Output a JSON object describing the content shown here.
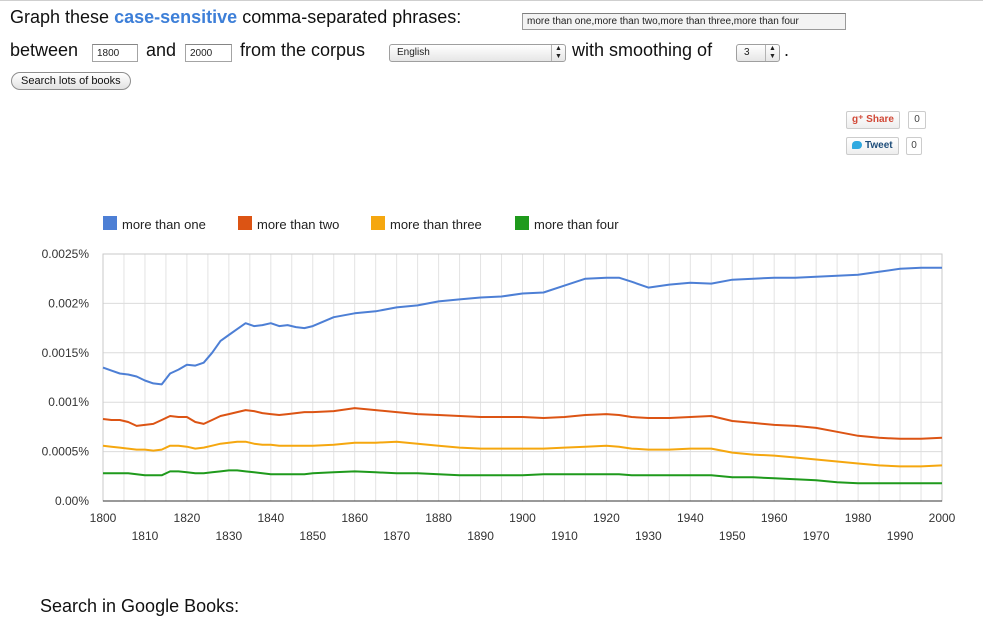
{
  "form": {
    "graph_prefix": "Graph these",
    "case_sensitive": "case-sensitive",
    "graph_suffix": "comma-separated phrases:",
    "phrases_value": "more than one,more than two,more than three,more than four",
    "between_label": "between",
    "start_year": "1800",
    "and_label": "and",
    "end_year": "2000",
    "corpus_label": "from the corpus",
    "corpus_value": "English",
    "smoothing_label": "with smoothing of",
    "smoothing_value": "3",
    "period": ".",
    "search_button": "Search lots of books"
  },
  "social": {
    "share_label": "Share",
    "share_count": "0",
    "tweet_label": "Tweet",
    "tweet_count": "0"
  },
  "footer": {
    "search_in_google_books": "Search in Google Books:"
  },
  "chart_data": {
    "type": "line",
    "xlim": [
      1800,
      2000
    ],
    "ylim": [
      0,
      0.0025
    ],
    "x_ticks": [
      1800,
      1810,
      1820,
      1830,
      1840,
      1850,
      1860,
      1870,
      1880,
      1890,
      1900,
      1910,
      1920,
      1930,
      1940,
      1950,
      1960,
      1970,
      1980,
      1990,
      2000
    ],
    "y_ticks": [
      0,
      0.0005,
      0.001,
      0.0015,
      0.002,
      0.0025
    ],
    "y_tick_labels": [
      "0.00%",
      "0.0005%",
      "0.001%",
      "0.0015%",
      "0.002%",
      "0.0025%"
    ],
    "grid": true,
    "legend_position": "top",
    "x": [
      1800,
      1802,
      1804,
      1806,
      1808,
      1810,
      1812,
      1814,
      1816,
      1818,
      1820,
      1822,
      1824,
      1826,
      1828,
      1830,
      1832,
      1834,
      1836,
      1838,
      1840,
      1842,
      1844,
      1846,
      1848,
      1850,
      1855,
      1860,
      1865,
      1870,
      1875,
      1880,
      1885,
      1890,
      1895,
      1900,
      1905,
      1910,
      1915,
      1920,
      1923,
      1926,
      1930,
      1935,
      1940,
      1945,
      1950,
      1955,
      1960,
      1965,
      1970,
      1975,
      1980,
      1985,
      1990,
      1995,
      2000
    ],
    "series": [
      {
        "name": "more than one",
        "color": "#4d7fd5",
        "values": [
          0.00135,
          0.00132,
          0.00129,
          0.00128,
          0.00126,
          0.00122,
          0.00119,
          0.00118,
          0.00129,
          0.00133,
          0.00138,
          0.00137,
          0.0014,
          0.0015,
          0.00162,
          0.00168,
          0.00174,
          0.0018,
          0.00177,
          0.00178,
          0.0018,
          0.00177,
          0.00178,
          0.00176,
          0.00175,
          0.00177,
          0.00186,
          0.0019,
          0.00192,
          0.00196,
          0.00198,
          0.00202,
          0.00204,
          0.00206,
          0.00207,
          0.0021,
          0.00211,
          0.00218,
          0.00225,
          0.00226,
          0.00226,
          0.00222,
          0.00216,
          0.00219,
          0.00221,
          0.0022,
          0.00224,
          0.00225,
          0.00226,
          0.00226,
          0.00227,
          0.00228,
          0.00229,
          0.00232,
          0.00235,
          0.00236,
          0.00236
        ]
      },
      {
        "name": "more than two",
        "color": "#dc5414",
        "values": [
          0.00083,
          0.00082,
          0.00082,
          0.0008,
          0.00076,
          0.00077,
          0.00078,
          0.00082,
          0.00086,
          0.00085,
          0.00085,
          0.0008,
          0.00078,
          0.00082,
          0.00086,
          0.00088,
          0.0009,
          0.00092,
          0.00091,
          0.00089,
          0.00088,
          0.00087,
          0.00088,
          0.00089,
          0.0009,
          0.0009,
          0.00091,
          0.00094,
          0.00092,
          0.0009,
          0.00088,
          0.00087,
          0.00086,
          0.00085,
          0.00085,
          0.00085,
          0.00084,
          0.00085,
          0.00087,
          0.00088,
          0.00087,
          0.00085,
          0.00084,
          0.00084,
          0.00085,
          0.00086,
          0.00081,
          0.00079,
          0.00077,
          0.00076,
          0.00074,
          0.0007,
          0.00066,
          0.00064,
          0.00063,
          0.00063,
          0.00064
        ]
      },
      {
        "name": "more than three",
        "color": "#f5a70f",
        "values": [
          0.00056,
          0.00055,
          0.00054,
          0.00053,
          0.00052,
          0.00052,
          0.00051,
          0.00052,
          0.00056,
          0.00056,
          0.00055,
          0.00053,
          0.00054,
          0.00056,
          0.00058,
          0.00059,
          0.0006,
          0.0006,
          0.00058,
          0.00057,
          0.00057,
          0.00056,
          0.00056,
          0.00056,
          0.00056,
          0.00056,
          0.00057,
          0.00059,
          0.00059,
          0.0006,
          0.00058,
          0.00056,
          0.00054,
          0.00053,
          0.00053,
          0.00053,
          0.00053,
          0.00054,
          0.00055,
          0.00056,
          0.00055,
          0.00053,
          0.00052,
          0.00052,
          0.00053,
          0.00053,
          0.00049,
          0.00047,
          0.00046,
          0.00044,
          0.00042,
          0.0004,
          0.00038,
          0.00036,
          0.00035,
          0.00035,
          0.00036
        ]
      },
      {
        "name": "more than four",
        "color": "#1f9a1c",
        "values": [
          0.00028,
          0.00028,
          0.00028,
          0.00028,
          0.00027,
          0.00026,
          0.00026,
          0.00026,
          0.0003,
          0.0003,
          0.00029,
          0.00028,
          0.00028,
          0.00029,
          0.0003,
          0.00031,
          0.00031,
          0.0003,
          0.00029,
          0.00028,
          0.00027,
          0.00027,
          0.00027,
          0.00027,
          0.00027,
          0.00028,
          0.00029,
          0.0003,
          0.00029,
          0.00028,
          0.00028,
          0.00027,
          0.00026,
          0.00026,
          0.00026,
          0.00026,
          0.00027,
          0.00027,
          0.00027,
          0.00027,
          0.00027,
          0.00026,
          0.00026,
          0.00026,
          0.00026,
          0.00026,
          0.00024,
          0.00024,
          0.00023,
          0.00022,
          0.00021,
          0.00019,
          0.00018,
          0.00018,
          0.00018,
          0.00018,
          0.00018
        ]
      }
    ]
  }
}
